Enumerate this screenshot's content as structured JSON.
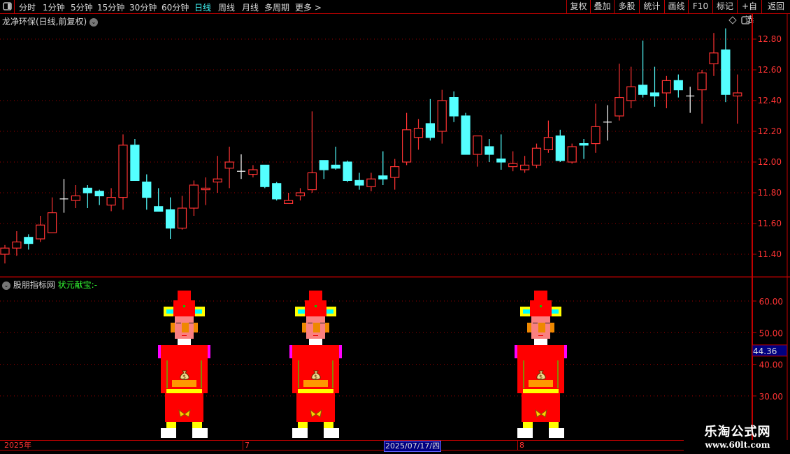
{
  "toolbar": {
    "periods": [
      "分时",
      "1分钟",
      "5分钟",
      "15分钟",
      "30分钟",
      "60分钟",
      "日线",
      "周线",
      "月线",
      "多周期",
      "更多 >"
    ],
    "active_period": "日线",
    "right_buttons": [
      "复权",
      "叠加",
      "多股",
      "统计",
      "画线",
      "F10",
      "标记",
      "+自选",
      "返回"
    ]
  },
  "main_chart": {
    "title": "龙净环保(日线,前复权)"
  },
  "indicator": {
    "source": "股朋指标网",
    "name": "状元献宝:-",
    "current_value": "44.36",
    "axis_ticks": [
      "60.00",
      "50.00",
      "40.00",
      "30.00"
    ]
  },
  "datebar": {
    "labels": [
      "2025年",
      "7",
      "2025/07/17/四",
      "8"
    ]
  },
  "watermark": {
    "name": "乐淘公式网",
    "url": "www.60lt.com"
  },
  "colors": {
    "up": "#ff3333",
    "down": "#54ffff",
    "doji": "#ffffff",
    "grid": "#a00000",
    "axis": "#c00000",
    "highlight": "#000080"
  },
  "chart_data": {
    "type": "candlestick",
    "ylim": [
      11.3,
      12.9
    ],
    "y_ticks": [
      "12.80",
      "12.60",
      "12.40",
      "12.20",
      "12.00",
      "11.80",
      "11.60",
      "11.40"
    ],
    "grid": true,
    "candles": [
      [
        11.4,
        11.46,
        11.34,
        11.44
      ],
      [
        11.44,
        11.55,
        11.39,
        11.48
      ],
      [
        11.51,
        11.53,
        11.43,
        11.47
      ],
      [
        11.5,
        11.65,
        11.48,
        11.59
      ],
      [
        11.54,
        11.77,
        11.54,
        11.67
      ],
      [
        11.76,
        11.89,
        11.67,
        11.76
      ],
      [
        11.75,
        11.85,
        11.7,
        11.78
      ],
      [
        11.83,
        11.85,
        11.7,
        11.8
      ],
      [
        11.81,
        11.82,
        11.72,
        11.78
      ],
      [
        11.72,
        11.83,
        11.68,
        11.77
      ],
      [
        11.77,
        12.18,
        11.69,
        12.11
      ],
      [
        12.11,
        12.15,
        11.88,
        11.88
      ],
      [
        11.87,
        11.92,
        11.69,
        11.77
      ],
      [
        11.71,
        11.83,
        11.68,
        11.68
      ],
      [
        11.69,
        11.77,
        11.5,
        11.57
      ],
      [
        11.57,
        11.78,
        11.56,
        11.7
      ],
      [
        11.7,
        11.88,
        11.65,
        11.85
      ],
      [
        11.82,
        11.9,
        11.72,
        11.83
      ],
      [
        11.87,
        12.04,
        11.8,
        11.89
      ],
      [
        11.96,
        12.1,
        11.83,
        12.0
      ],
      [
        11.94,
        12.05,
        11.89,
        11.94
      ],
      [
        11.92,
        11.98,
        11.9,
        11.95
      ],
      [
        11.98,
        11.98,
        11.83,
        11.84
      ],
      [
        11.86,
        11.87,
        11.75,
        11.76
      ],
      [
        11.73,
        11.8,
        11.73,
        11.75
      ],
      [
        11.78,
        11.83,
        11.75,
        11.8
      ],
      [
        11.82,
        12.33,
        11.8,
        11.93
      ],
      [
        12.01,
        12.01,
        11.89,
        11.95
      ],
      [
        11.98,
        12.1,
        11.95,
        11.96
      ],
      [
        12.0,
        12.01,
        11.87,
        11.88
      ],
      [
        11.88,
        11.93,
        11.82,
        11.85
      ],
      [
        11.84,
        11.93,
        11.81,
        11.89
      ],
      [
        11.91,
        12.07,
        11.85,
        11.89
      ],
      [
        11.9,
        12.02,
        11.82,
        11.97
      ],
      [
        12.0,
        12.32,
        11.98,
        12.21
      ],
      [
        12.16,
        12.28,
        12.08,
        12.22
      ],
      [
        12.25,
        12.41,
        12.14,
        12.16
      ],
      [
        12.2,
        12.47,
        12.12,
        12.4
      ],
      [
        12.42,
        12.46,
        12.26,
        12.3
      ],
      [
        12.3,
        12.32,
        12.05,
        12.05
      ],
      [
        12.05,
        12.17,
        11.97,
        12.17
      ],
      [
        12.1,
        12.15,
        12.0,
        12.05
      ],
      [
        12.02,
        12.18,
        11.95,
        12.0
      ],
      [
        11.97,
        12.07,
        11.94,
        11.99
      ],
      [
        11.95,
        12.04,
        11.93,
        11.98
      ],
      [
        11.98,
        12.12,
        11.96,
        12.09
      ],
      [
        12.08,
        12.27,
        12.06,
        12.16
      ],
      [
        12.17,
        12.21,
        12.0,
        12.01
      ],
      [
        12.0,
        12.12,
        11.99,
        12.1
      ],
      [
        12.12,
        12.15,
        12.02,
        12.11
      ],
      [
        12.12,
        12.38,
        12.06,
        12.23
      ],
      [
        12.26,
        12.37,
        12.14,
        12.26
      ],
      [
        12.3,
        12.64,
        12.27,
        12.42
      ],
      [
        12.4,
        12.62,
        12.35,
        12.49
      ],
      [
        12.5,
        12.79,
        12.42,
        12.44
      ],
      [
        12.45,
        12.62,
        12.36,
        12.43
      ],
      [
        12.45,
        12.56,
        12.35,
        12.53
      ],
      [
        12.53,
        12.57,
        12.42,
        12.47
      ],
      [
        12.43,
        12.49,
        12.32,
        12.43
      ],
      [
        12.47,
        12.6,
        12.25,
        12.58
      ],
      [
        12.64,
        12.84,
        12.56,
        12.71
      ],
      [
        12.73,
        12.87,
        12.39,
        12.44
      ],
      [
        12.43,
        12.57,
        12.25,
        12.45
      ]
    ],
    "candle_format": [
      "open",
      "high",
      "low",
      "close"
    ]
  }
}
